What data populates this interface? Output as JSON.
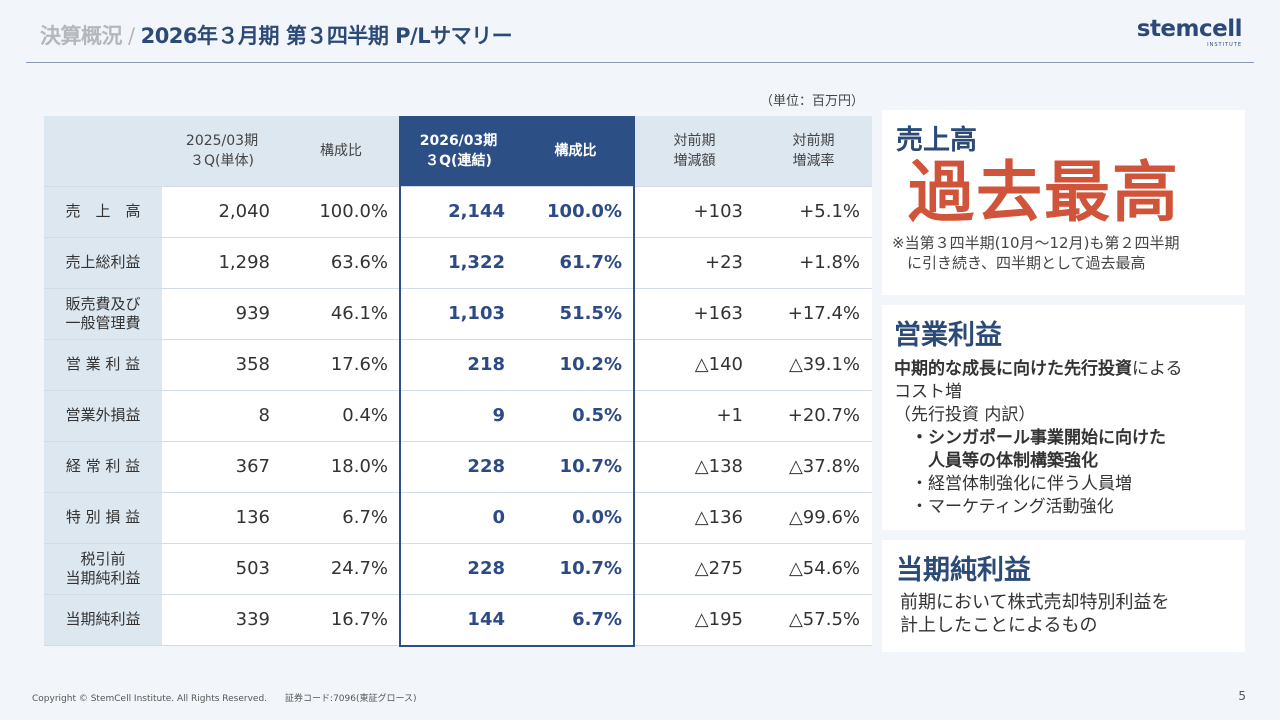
{
  "header": {
    "crumb": "決算概況",
    "separator": "/",
    "title": "2026年３月期 第３四半期 P/Lサマリー",
    "logo_word": "stemcell",
    "logo_sub": "INSTITUTE"
  },
  "unit": "（単位：百万円）",
  "table": {
    "headers": [
      "",
      "2025/03期\n３Q(単体)",
      "構成比",
      "2026/03期\n３Q(連結)",
      "構成比",
      "対前期\n増減額",
      "対前期\n増減率"
    ],
    "rows": [
      [
        "売　上　高",
        "2,040",
        "100.0%",
        "2,144",
        "100.0%",
        "+103",
        "+5.1%"
      ],
      [
        "売上総利益",
        "1,298",
        "63.6%",
        "1,322",
        "61.7%",
        "+23",
        "+1.8%"
      ],
      [
        "販売費及び\n一般管理費",
        "939",
        "46.1%",
        "1,103",
        "51.5%",
        "+163",
        "+17.4%"
      ],
      [
        "営 業 利 益",
        "358",
        "17.6%",
        "218",
        "10.2%",
        "△140",
        "△39.1%"
      ],
      [
        "営業外損益",
        "8",
        "0.4%",
        "9",
        "0.5%",
        "+1",
        "+20.7%"
      ],
      [
        "経 常 利 益",
        "367",
        "18.0%",
        "228",
        "10.7%",
        "△138",
        "△37.8%"
      ],
      [
        "特 別 損 益",
        "136",
        "6.7%",
        "0",
        "0.0%",
        "△136",
        "△99.6%"
      ],
      [
        "税引前\n当期純利益",
        "503",
        "24.7%",
        "228",
        "10.7%",
        "△275",
        "△54.6%"
      ],
      [
        "当期純利益",
        "339",
        "16.7%",
        "144",
        "6.7%",
        "△195",
        "△57.5%"
      ]
    ]
  },
  "panels": {
    "sales": {
      "heading": "売上高",
      "big": "過去最高",
      "note1": "※当第３四半期(10月～12月)も第２四半期",
      "note2": "　に引き続き、四半期として過去最高"
    },
    "op": {
      "heading": "営業利益",
      "l1b": "中期的な成長に向けた先行投資",
      "l1": "による",
      "l2": "コスト増",
      "l3": "（先行投資 内訳）",
      "l4": "　・シンガポール事業開始に向けた",
      "l5": "　　人員等の体制構築強化",
      "l6": "　・経営体制強化に伴う人員増",
      "l7": "　・マーケティング活動強化"
    },
    "net": {
      "heading": "当期純利益",
      "l1": "前期において株式売却特別利益を",
      "l2": "計上したことによるもの"
    }
  },
  "footer": {
    "copyright": "Copyright © StemCell Institute. All Rights Reserved.　　証券コード:7096(東証グロース)",
    "page": "5"
  },
  "colors": {
    "navy": "#2c4f86",
    "accent": "#d0543a"
  }
}
